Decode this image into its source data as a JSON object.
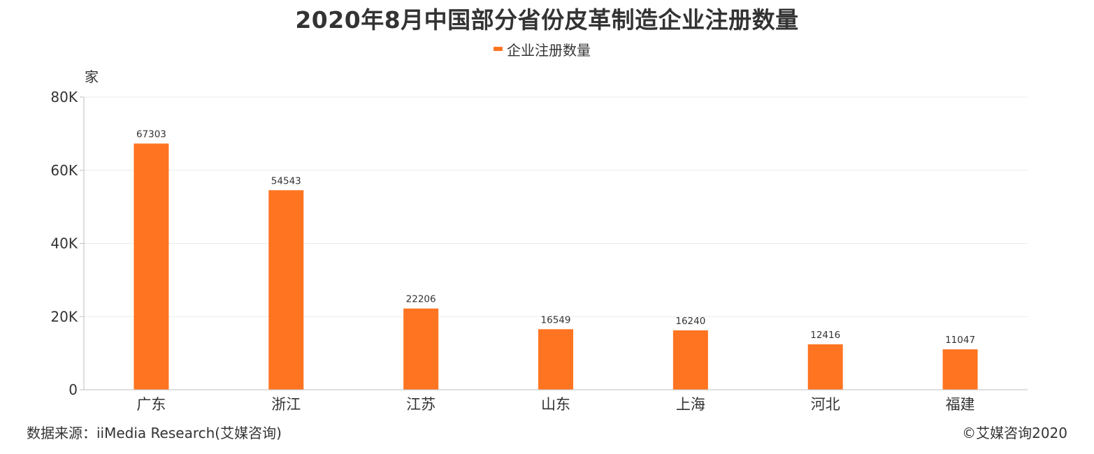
{
  "title": "2020年8月中国部分省份皮革制造企业注册数量",
  "legend_label": "企业注册数量",
  "source_text": "数据来源：iiMedia Research(艾媒咨询)",
  "copyright_text": "©艾媒咨询2020",
  "colors": {
    "bar": "#FF7421",
    "grid": "#EBEBEB",
    "axis": "#BFBFBF",
    "text": "#333333"
  },
  "chart_data": {
    "type": "bar",
    "title": "2020年8月中国部分省份皮革制造企业注册数量",
    "ylabel": "家",
    "ylim": [
      0,
      80000
    ],
    "yticks": [
      0,
      20000,
      40000,
      60000,
      80000
    ],
    "ytick_labels": [
      "0",
      "20K",
      "40K",
      "60K",
      "80K"
    ],
    "categories": [
      "广东",
      "浙江",
      "江苏",
      "山东",
      "上海",
      "河北",
      "福建"
    ],
    "series": [
      {
        "name": "企业注册数量",
        "values": [
          67303,
          54543,
          22206,
          16549,
          16240,
          12416,
          11047
        ]
      }
    ],
    "grid": true,
    "legend_position": "top-center"
  }
}
